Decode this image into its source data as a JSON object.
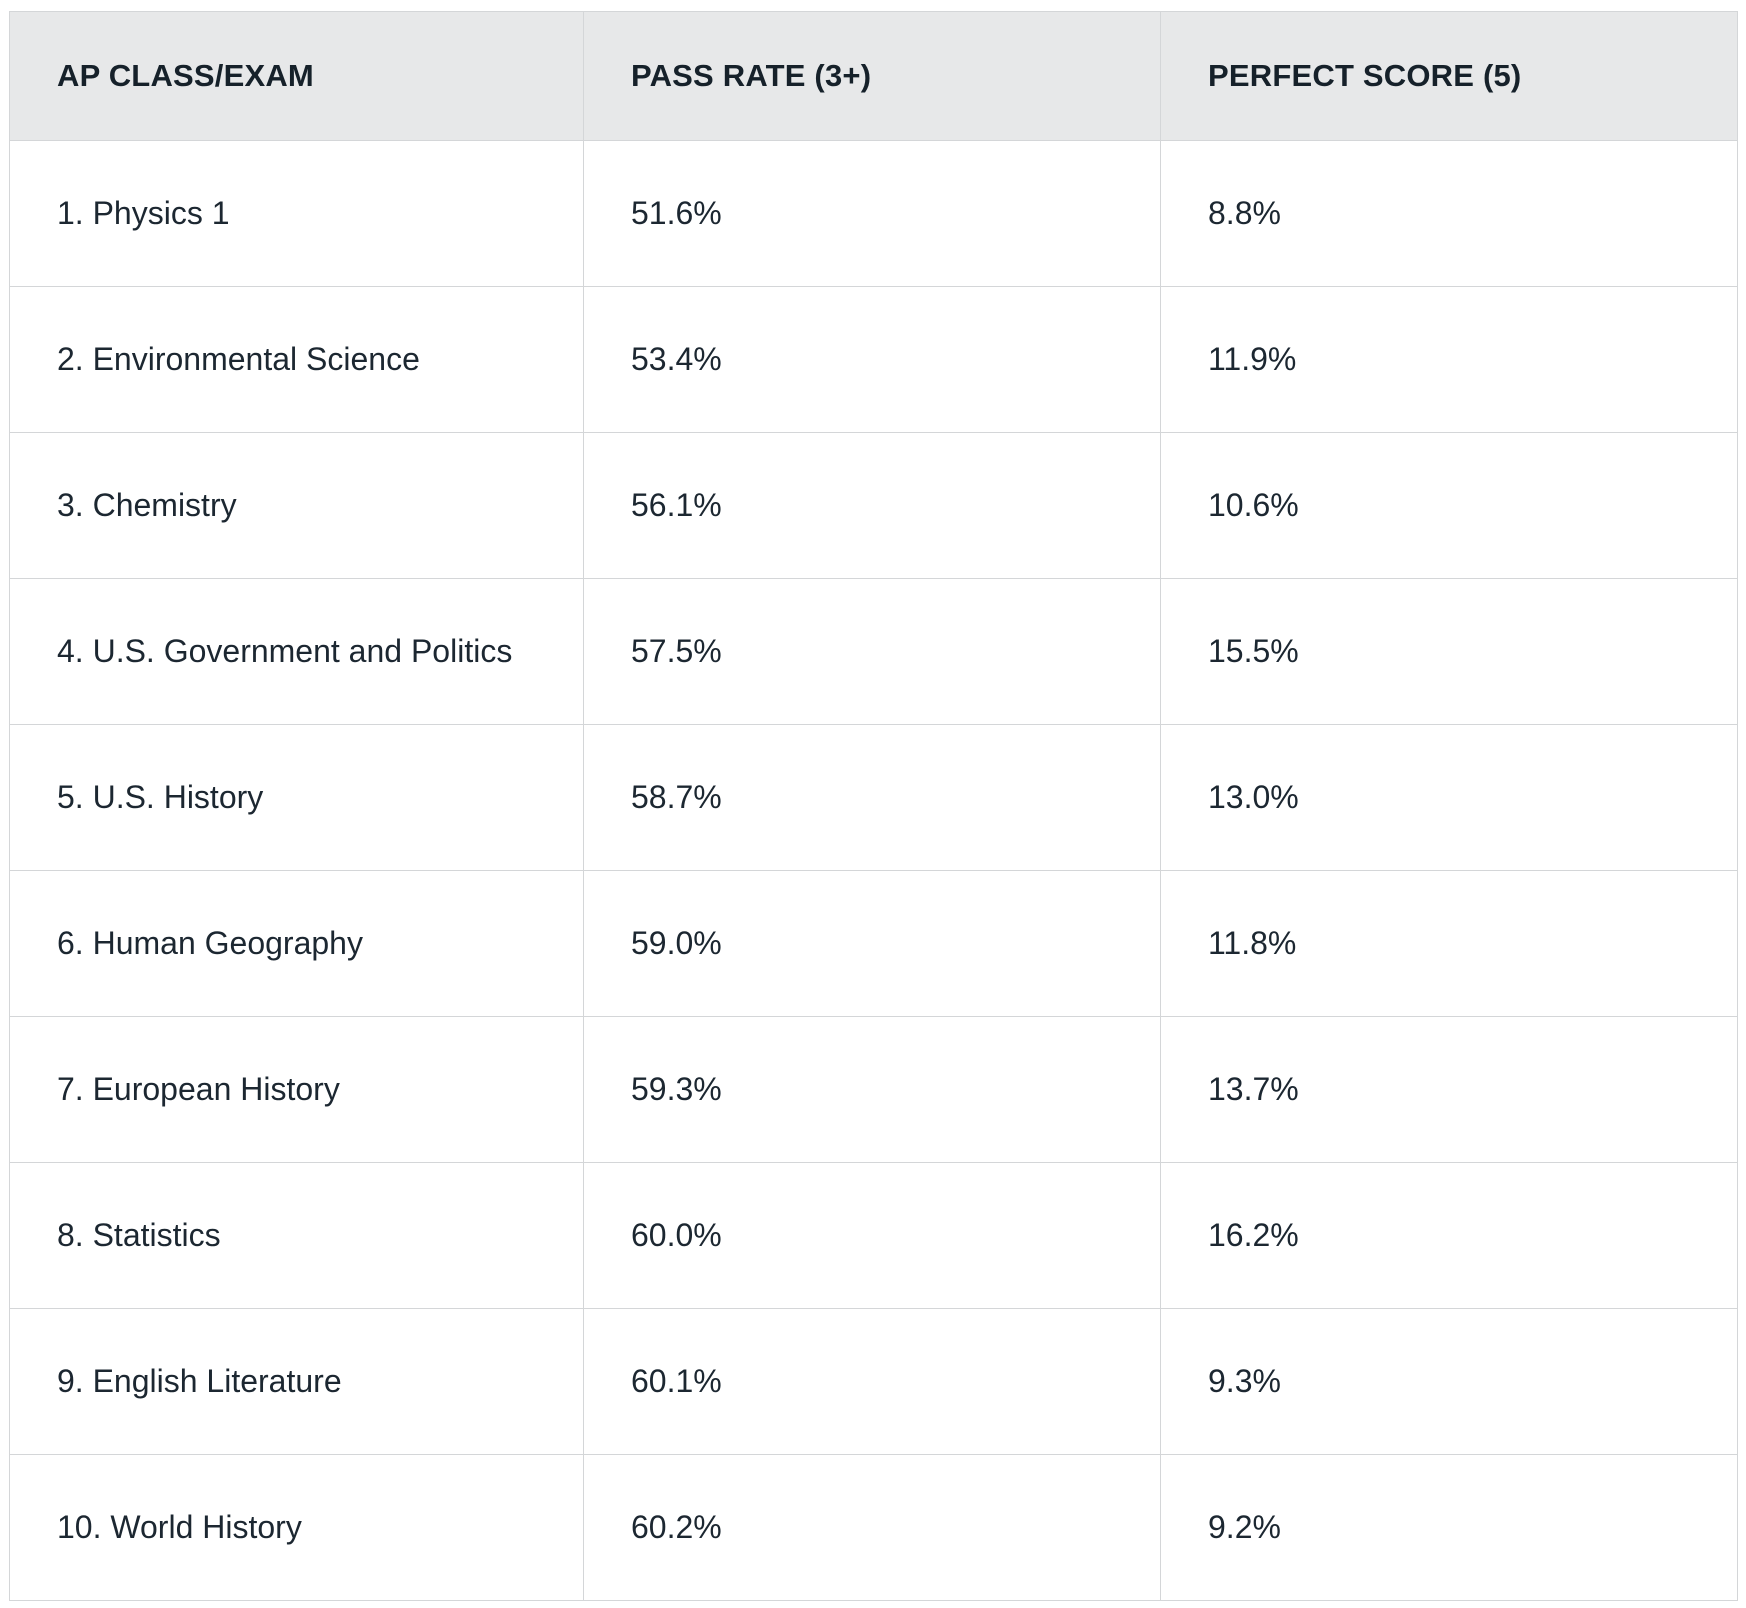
{
  "table": {
    "headers": [
      "AP CLASS/EXAM",
      "PASS RATE (3+)",
      "PERFECT SCORE (5)"
    ],
    "rows": [
      [
        "1. Physics 1",
        "51.6%",
        "8.8%"
      ],
      [
        "2. Environmental Science",
        "53.4%",
        "11.9%"
      ],
      [
        "3. Chemistry",
        "56.1%",
        "10.6%"
      ],
      [
        "4. U.S. Government and Politics",
        "57.5%",
        "15.5%"
      ],
      [
        "5. U.S. History",
        "58.7%",
        "13.0%"
      ],
      [
        "6. Human Geography",
        "59.0%",
        "11.8%"
      ],
      [
        "7. European History",
        "59.3%",
        "13.7%"
      ],
      [
        "8. Statistics",
        "60.0%",
        "16.2%"
      ],
      [
        "9. English Literature",
        "60.1%",
        "9.3%"
      ],
      [
        "10. World History",
        "60.2%",
        "9.2%"
      ]
    ]
  }
}
